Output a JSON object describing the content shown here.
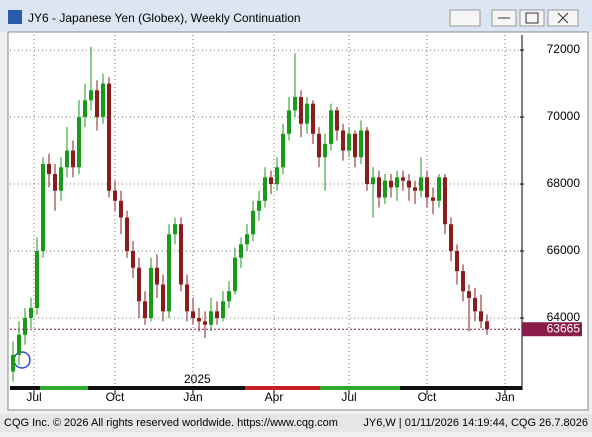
{
  "chart_data": {
    "type": "candlestick",
    "title": "JY6 - Japanese Yen (Globex), Weekly Continuation",
    "year_label": "2025",
    "footer_left": "CQG Inc. © 2026 All rights reserved worldwide. https://www.cqg.com",
    "footer_right": "JY6,W | 01/11/2026 14:19:44, CQG 26.7.8026",
    "up_color": "#1a9a1a",
    "down_color": "#8b1c1c",
    "last_color": "#8b1c4a",
    "grid": true,
    "xlim": [
      -0.5,
      84.5
    ],
    "xticks": [
      {
        "value": 3.5,
        "label": "Jul"
      },
      {
        "value": 17,
        "label": "Oct"
      },
      {
        "value": 30,
        "label": "Jan"
      },
      {
        "value": 43.5,
        "label": "Apr"
      },
      {
        "value": 56,
        "label": "Jul"
      },
      {
        "value": 69,
        "label": "Oct"
      },
      {
        "value": 82,
        "label": "Jan"
      }
    ],
    "ylim": [
      62000,
      72450
    ],
    "yticks": [
      64000,
      66000,
      68000,
      70000,
      72000
    ],
    "open": [
      62400,
      62900,
      63500,
      64000,
      64300,
      66000,
      68600,
      68300,
      67800,
      68500,
      69000,
      68500,
      70000,
      70500,
      70800,
      70000,
      71000,
      67800,
      67500,
      67000,
      66000,
      65500,
      64500,
      64000,
      65500,
      65000,
      64200,
      66500,
      66800,
      65000,
      64200,
      64000,
      63900,
      63800,
      64200,
      64000,
      64500,
      64800,
      65800,
      66200,
      66500,
      67200,
      67500,
      68200,
      68000,
      68500,
      69500,
      70200,
      70600,
      69800,
      70400,
      69500,
      68800,
      69200,
      70200,
      69600,
      69000,
      69500,
      68800,
      69600,
      68000,
      68200,
      67600,
      68100,
      67900,
      68200,
      68100,
      67900,
      67800,
      68200,
      67600,
      67500,
      68200,
      66800,
      66000,
      65400,
      64800,
      64600,
      64200,
      63900
    ],
    "high": [
      63300,
      63900,
      64300,
      64600,
      66400,
      68800,
      68900,
      68600,
      68800,
      69700,
      69300,
      70500,
      71000,
      72100,
      71100,
      71300,
      71200,
      68100,
      67800,
      67200,
      66300,
      65800,
      64800,
      65800,
      65900,
      65300,
      66800,
      67000,
      67000,
      65300,
      64600,
      64300,
      64200,
      64600,
      64500,
      64800,
      65100,
      66100,
      66400,
      66800,
      67500,
      67800,
      68500,
      68400,
      68800,
      69800,
      70600,
      71900,
      70800,
      70600,
      70500,
      69700,
      69500,
      70400,
      70300,
      69800,
      69700,
      69600,
      69900,
      69700,
      68500,
      68400,
      68300,
      68300,
      68400,
      68400,
      68300,
      68100,
      68800,
      68400,
      67900,
      68300,
      68300,
      67000,
      66200,
      65600,
      65000,
      64900,
      64700,
      64100
    ],
    "low": [
      62100,
      62600,
      63200,
      63700,
      64100,
      65800,
      67900,
      67200,
      67500,
      68200,
      68200,
      68300,
      69700,
      70200,
      69600,
      69800,
      67600,
      67200,
      66500,
      65800,
      65200,
      64000,
      63800,
      63900,
      64600,
      63900,
      64000,
      66200,
      64800,
      63900,
      63800,
      63600,
      63400,
      63600,
      63800,
      63900,
      64300,
      64700,
      65500,
      66000,
      66300,
      66900,
      67300,
      67700,
      67800,
      68300,
      69300,
      70000,
      69400,
      69500,
      69200,
      68500,
      67800,
      69000,
      69300,
      68700,
      68800,
      68500,
      68600,
      67800,
      67000,
      67300,
      67400,
      67600,
      67500,
      67800,
      67500,
      67400,
      67600,
      67300,
      67100,
      67300,
      66500,
      65700,
      65000,
      64500,
      63600,
      63900,
      63700,
      63500
    ],
    "close": [
      62900,
      63500,
      64000,
      64300,
      66000,
      68600,
      68300,
      67800,
      68500,
      69000,
      68500,
      70000,
      70500,
      70800,
      70000,
      71000,
      67800,
      67500,
      67000,
      66000,
      65500,
      64500,
      64000,
      65500,
      65000,
      64200,
      66500,
      66800,
      65000,
      64200,
      64000,
      63900,
      63800,
      64200,
      64000,
      64500,
      64800,
      65800,
      66200,
      66500,
      67200,
      67500,
      68200,
      68000,
      68500,
      69500,
      70200,
      70600,
      69800,
      70400,
      69500,
      68800,
      69200,
      70200,
      69600,
      69000,
      69500,
      68800,
      69600,
      68000,
      68200,
      67600,
      68100,
      67900,
      68200,
      68100,
      67900,
      67800,
      68200,
      67600,
      67500,
      68200,
      66800,
      66000,
      65400,
      64800,
      64600,
      64200,
      63900,
      63665
    ]
  }
}
